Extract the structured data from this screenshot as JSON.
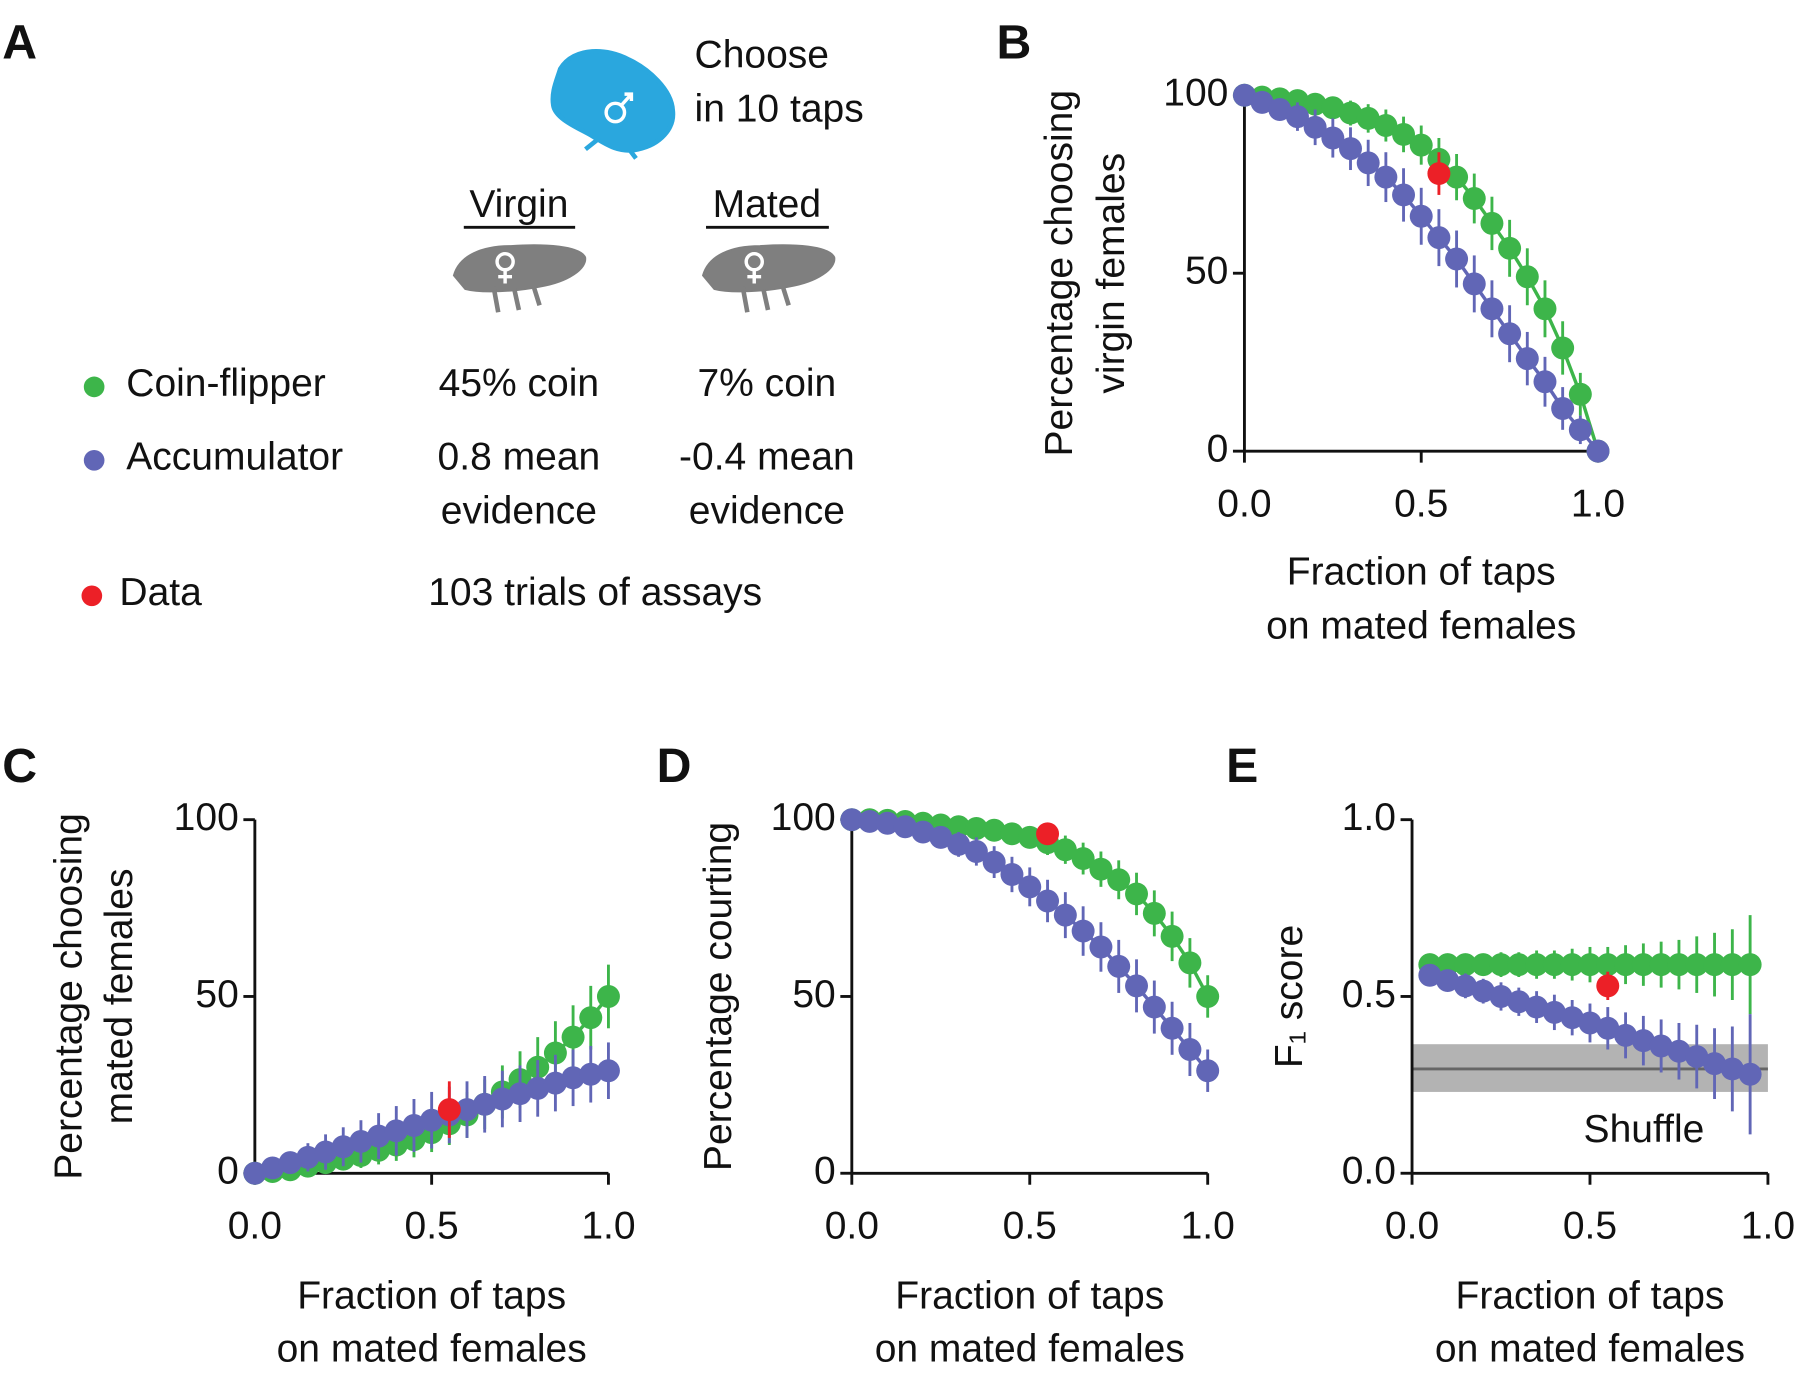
{
  "panel_a": {
    "label": "A",
    "heading": [
      "Choose",
      "in 10 taps"
    ],
    "columns": [
      "Virgin",
      "Mated"
    ],
    "rows": [
      {
        "name": "Coin-flipper",
        "virgin": [
          "45% coin"
        ],
        "mated": [
          "7% coin"
        ]
      },
      {
        "name": "Accumulator",
        "virgin": [
          "0.8 mean",
          "evidence"
        ],
        "mated": [
          "-0.4 mean",
          "evidence"
        ]
      },
      {
        "name": "Data",
        "note": "103 trials of assays"
      }
    ]
  },
  "chart_data": [
    {
      "type": "line",
      "panel": "B",
      "ylabel": [
        "Percentage choosing",
        "virgin females"
      ],
      "xlabel": [
        "Fraction of taps",
        "on mated females"
      ],
      "x": [
        0,
        0.05,
        0.1,
        0.15,
        0.2,
        0.25,
        0.3,
        0.35,
        0.4,
        0.45,
        0.5,
        0.55,
        0.6,
        0.65,
        0.7,
        0.75,
        0.8,
        0.85,
        0.9,
        0.95,
        1
      ],
      "xlim": [
        0,
        1
      ],
      "ylim": [
        0,
        100
      ],
      "xticks": [
        {
          "value": 0,
          "label": "0.0"
        },
        {
          "value": 0.5,
          "label": "0.5"
        },
        {
          "value": 1,
          "label": "1.0"
        }
      ],
      "yticks": [
        0,
        50,
        100
      ],
      "series": [
        {
          "color": "#3db54a",
          "values": [
            100,
            99.5,
            99,
            98.5,
            97.5,
            96.5,
            95,
            93.5,
            91.5,
            89,
            86,
            82,
            77,
            71,
            64,
            57,
            49,
            40,
            29,
            16,
            0
          ],
          "errors": [
            0,
            1,
            1.5,
            2,
            2.5,
            3,
            3.5,
            4,
            4.5,
            5,
            5.5,
            6,
            6.5,
            7,
            7.5,
            8,
            8,
            8,
            7.5,
            6,
            0
          ]
        },
        {
          "color": "#6166b6",
          "values": [
            100,
            98,
            96,
            94,
            91,
            88,
            85,
            81,
            77,
            72,
            66,
            60,
            54,
            47,
            40,
            33,
            26,
            19.5,
            12,
            6,
            0
          ],
          "errors": [
            0,
            2,
            3,
            4,
            5,
            5.5,
            6,
            6.5,
            7,
            7.5,
            8,
            8,
            8,
            8,
            8,
            8,
            7.5,
            7,
            6,
            4,
            0
          ]
        },
        {
          "color": "#ec2027",
          "x": [
            0.55
          ],
          "values": [
            78
          ],
          "errors": [
            6
          ]
        }
      ]
    },
    {
      "type": "line",
      "panel": "C",
      "ylabel": [
        "Percentage choosing",
        "mated females"
      ],
      "xlabel": [
        "Fraction of taps",
        "on mated females"
      ],
      "x": [
        0,
        0.05,
        0.1,
        0.15,
        0.2,
        0.25,
        0.3,
        0.35,
        0.4,
        0.45,
        0.5,
        0.55,
        0.6,
        0.65,
        0.7,
        0.75,
        0.8,
        0.85,
        0.9,
        0.95,
        1
      ],
      "xlim": [
        0,
        1
      ],
      "ylim": [
        0,
        100
      ],
      "xticks": [
        {
          "value": 0,
          "label": "0.0"
        },
        {
          "value": 0.5,
          "label": "0.5"
        },
        {
          "value": 1,
          "label": "1.0"
        }
      ],
      "yticks": [
        0,
        50,
        100
      ],
      "series": [
        {
          "color": "#3db54a",
          "values": [
            0,
            0.5,
            1,
            2,
            3,
            4,
            5,
            6.5,
            8,
            9.5,
            11.5,
            14,
            16.5,
            19.5,
            23,
            26.5,
            30,
            34,
            38.5,
            44,
            50
          ],
          "errors": [
            0,
            1,
            1.5,
            2,
            2.5,
            3,
            3.5,
            4,
            4.5,
            5,
            5.5,
            6,
            6.5,
            7,
            7.5,
            8,
            8.5,
            9,
            9,
            9,
            9
          ]
        },
        {
          "color": "#6166b6",
          "values": [
            0,
            1.5,
            3,
            4.5,
            6,
            7.5,
            9,
            10.5,
            12,
            13.5,
            15,
            16.5,
            18,
            19.5,
            21,
            22.5,
            24,
            25.5,
            27,
            28,
            29
          ],
          "errors": [
            0,
            2,
            3,
            4,
            5,
            5.5,
            6,
            6.5,
            7,
            7.5,
            8,
            8,
            8,
            8,
            8,
            8,
            8,
            8,
            8,
            8,
            8
          ]
        },
        {
          "color": "#ec2027",
          "x": [
            0.55
          ],
          "values": [
            18
          ],
          "errors": [
            8
          ]
        }
      ]
    },
    {
      "type": "line",
      "panel": "D",
      "ylabel": [
        "Percentage courting"
      ],
      "xlabel": [
        "Fraction of taps",
        "on mated females"
      ],
      "x": [
        0,
        0.05,
        0.1,
        0.15,
        0.2,
        0.25,
        0.3,
        0.35,
        0.4,
        0.45,
        0.5,
        0.55,
        0.6,
        0.65,
        0.7,
        0.75,
        0.8,
        0.85,
        0.9,
        0.95,
        1
      ],
      "xlim": [
        0,
        1
      ],
      "ylim": [
        0,
        100
      ],
      "xticks": [
        {
          "value": 0,
          "label": "0.0"
        },
        {
          "value": 0.5,
          "label": "0.5"
        },
        {
          "value": 1,
          "label": "1.0"
        }
      ],
      "yticks": [
        0,
        50,
        100
      ],
      "series": [
        {
          "color": "#3db54a",
          "values": [
            100,
            100,
            99.8,
            99.5,
            99,
            98.5,
            98,
            97.5,
            97,
            96,
            95,
            93.5,
            91.5,
            89,
            86,
            83,
            79,
            73.5,
            67,
            59.5,
            50
          ],
          "errors": [
            0,
            0.5,
            0.5,
            1,
            1,
            1.5,
            1.5,
            2,
            2,
            2.5,
            3,
            3.5,
            4,
            4.5,
            5,
            5.5,
            6,
            6.5,
            7,
            7,
            6
          ]
        },
        {
          "color": "#6166b6",
          "values": [
            100,
            99.5,
            99,
            98,
            96.5,
            95,
            93,
            91,
            88,
            84.5,
            81,
            77,
            73,
            68.5,
            64,
            58.5,
            53,
            47,
            41,
            35,
            29
          ],
          "errors": [
            0,
            1,
            1.5,
            2,
            2.5,
            3,
            3.5,
            4,
            4.5,
            5,
            5.5,
            6,
            6.5,
            7,
            7,
            7.5,
            7.5,
            7.5,
            7.5,
            7.5,
            6
          ]
        },
        {
          "color": "#ec2027",
          "x": [
            0.55
          ],
          "values": [
            96
          ],
          "errors": [
            3
          ]
        }
      ]
    },
    {
      "type": "line",
      "panel": "E",
      "ylabel": [
        "F₁ score"
      ],
      "xlabel": [
        "Fraction of taps",
        "on mated females"
      ],
      "x": [
        0.05,
        0.1,
        0.15,
        0.2,
        0.25,
        0.3,
        0.35,
        0.4,
        0.45,
        0.5,
        0.55,
        0.6,
        0.65,
        0.7,
        0.75,
        0.8,
        0.85,
        0.9,
        0.95
      ],
      "xlim": [
        0,
        1
      ],
      "ylim": [
        0,
        1
      ],
      "xticks": [
        {
          "value": 0,
          "label": "0.0"
        },
        {
          "value": 0.5,
          "label": "0.5"
        },
        {
          "value": 1,
          "label": "1.0"
        }
      ],
      "yticks": [
        {
          "value": 0,
          "label": "0.0"
        },
        {
          "value": 0.5,
          "label": "0.5"
        },
        {
          "value": 1,
          "label": "1.0"
        }
      ],
      "band": {
        "center": 0.295,
        "low": 0.23,
        "high": 0.365,
        "label": "Shuffle",
        "color": "#b3b3b3"
      },
      "series": [
        {
          "color": "#3db54a",
          "values": [
            0.59,
            0.59,
            0.59,
            0.59,
            0.59,
            0.59,
            0.59,
            0.59,
            0.59,
            0.59,
            0.59,
            0.59,
            0.59,
            0.59,
            0.59,
            0.59,
            0.59,
            0.59,
            0.59
          ],
          "errors": [
            0.03,
            0.03,
            0.03,
            0.03,
            0.035,
            0.035,
            0.04,
            0.04,
            0.045,
            0.05,
            0.05,
            0.055,
            0.06,
            0.065,
            0.07,
            0.08,
            0.09,
            0.1,
            0.14
          ]
        },
        {
          "color": "#6166b6",
          "values": [
            0.56,
            0.545,
            0.53,
            0.515,
            0.5,
            0.485,
            0.47,
            0.455,
            0.44,
            0.425,
            0.41,
            0.39,
            0.375,
            0.36,
            0.345,
            0.33,
            0.31,
            0.295,
            0.28
          ],
          "errors": [
            0.03,
            0.03,
            0.035,
            0.035,
            0.04,
            0.04,
            0.045,
            0.05,
            0.05,
            0.055,
            0.06,
            0.065,
            0.07,
            0.075,
            0.08,
            0.09,
            0.1,
            0.12,
            0.17
          ]
        },
        {
          "color": "#ec2027",
          "x": [
            0.55
          ],
          "values": [
            0.53
          ],
          "errors": [
            0.04
          ]
        }
      ]
    }
  ]
}
